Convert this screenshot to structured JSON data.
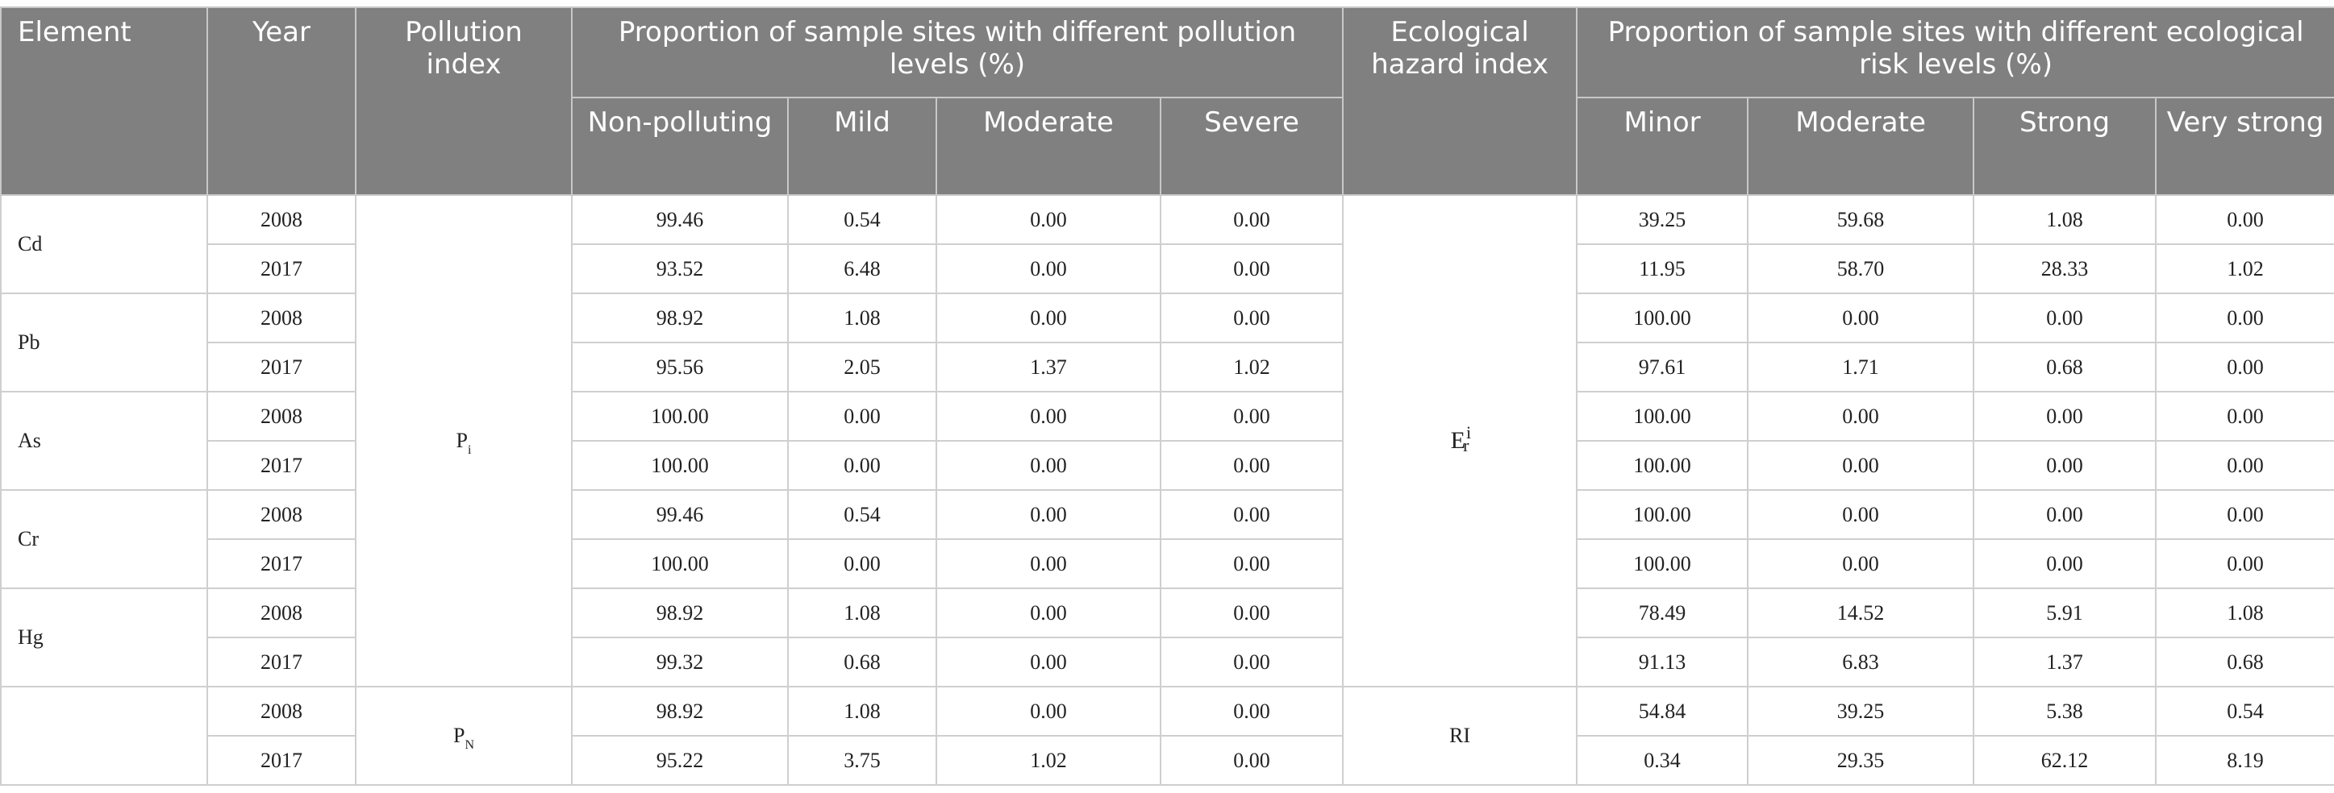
{
  "header": {
    "element": "Element",
    "year": "Year",
    "pollution_index": "Pollution index",
    "pollution_levels_group": "Proportion of sample sites with different pollution levels (%)",
    "ecological_hazard_index": "Ecological hazard index",
    "risk_levels_group": "Proportion of sample sites with different ecological risk levels (%)",
    "pollution_levels": [
      "Non-polluting",
      "Mild",
      "Moderate",
      "Severe"
    ],
    "risk_levels": [
      "Minor",
      "Moderate",
      "Strong",
      "Very strong"
    ]
  },
  "symbols": {
    "pi_base": "P",
    "pi_sub": "i",
    "pn_base": "P",
    "pn_sub": "N",
    "er_base": "E",
    "er_sup": "i",
    "er_sub": "r",
    "ri": "RI"
  },
  "groups": [
    {
      "element": "Cd",
      "rows": [
        {
          "year": "2008",
          "pollution": [
            "99.46",
            "0.54",
            "0.00",
            "0.00"
          ],
          "risk": [
            "39.25",
            "59.68",
            "1.08",
            "0.00"
          ]
        },
        {
          "year": "2017",
          "pollution": [
            "93.52",
            "6.48",
            "0.00",
            "0.00"
          ],
          "risk": [
            "11.95",
            "58.70",
            "28.33",
            "1.02"
          ]
        }
      ]
    },
    {
      "element": "Pb",
      "rows": [
        {
          "year": "2008",
          "pollution": [
            "98.92",
            "1.08",
            "0.00",
            "0.00"
          ],
          "risk": [
            "100.00",
            "0.00",
            "0.00",
            "0.00"
          ]
        },
        {
          "year": "2017",
          "pollution": [
            "95.56",
            "2.05",
            "1.37",
            "1.02"
          ],
          "risk": [
            "97.61",
            "1.71",
            "0.68",
            "0.00"
          ]
        }
      ]
    },
    {
      "element": "As",
      "rows": [
        {
          "year": "2008",
          "pollution": [
            "100.00",
            "0.00",
            "0.00",
            "0.00"
          ],
          "risk": [
            "100.00",
            "0.00",
            "0.00",
            "0.00"
          ]
        },
        {
          "year": "2017",
          "pollution": [
            "100.00",
            "0.00",
            "0.00",
            "0.00"
          ],
          "risk": [
            "100.00",
            "0.00",
            "0.00",
            "0.00"
          ]
        }
      ]
    },
    {
      "element": "Cr",
      "rows": [
        {
          "year": "2008",
          "pollution": [
            "99.46",
            "0.54",
            "0.00",
            "0.00"
          ],
          "risk": [
            "100.00",
            "0.00",
            "0.00",
            "0.00"
          ]
        },
        {
          "year": "2017",
          "pollution": [
            "100.00",
            "0.00",
            "0.00",
            "0.00"
          ],
          "risk": [
            "100.00",
            "0.00",
            "0.00",
            "0.00"
          ]
        }
      ]
    },
    {
      "element": "Hg",
      "rows": [
        {
          "year": "2008",
          "pollution": [
            "98.92",
            "1.08",
            "0.00",
            "0.00"
          ],
          "risk": [
            "78.49",
            "14.52",
            "5.91",
            "1.08"
          ]
        },
        {
          "year": "2017",
          "pollution": [
            "99.32",
            "0.68",
            "0.00",
            "0.00"
          ],
          "risk": [
            "91.13",
            "6.83",
            "1.37",
            "0.68"
          ]
        }
      ]
    },
    {
      "element": "",
      "rows": [
        {
          "year": "2008",
          "pollution": [
            "98.92",
            "1.08",
            "0.00",
            "0.00"
          ],
          "risk": [
            "54.84",
            "39.25",
            "5.38",
            "0.54"
          ]
        },
        {
          "year": "2017",
          "pollution": [
            "95.22",
            "3.75",
            "1.02",
            "0.00"
          ],
          "risk": [
            "0.34",
            "29.35",
            "62.12",
            "8.19"
          ]
        }
      ]
    }
  ]
}
